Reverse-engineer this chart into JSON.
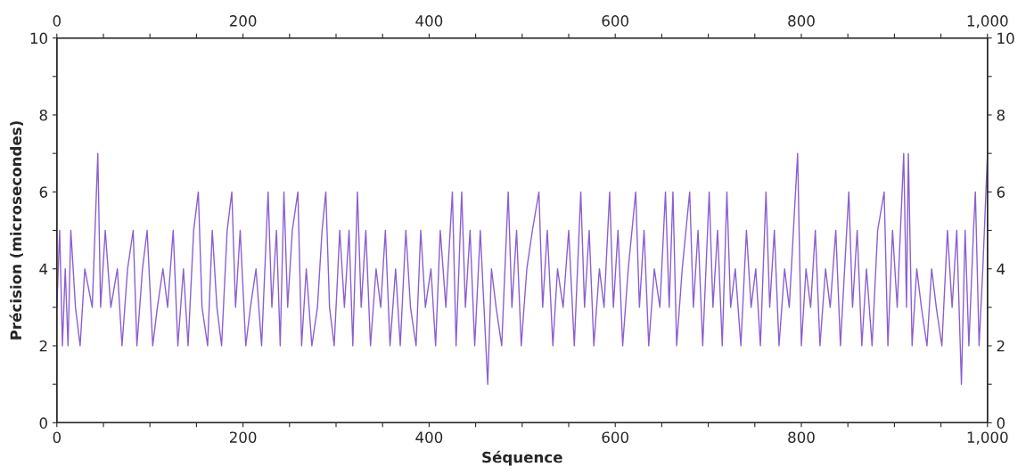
{
  "chart_data": {
    "type": "line",
    "xlabel": "Séquence",
    "ylabel": "Précision (microsecondes)",
    "xlim": [
      0,
      1000
    ],
    "xticks": [
      0,
      {
        "value": 50,
        "label": null
      },
      {
        "value": 100,
        "label": null
      },
      {
        "value": 150,
        "label": null
      },
      200,
      {
        "value": 250,
        "label": null
      },
      {
        "value": 300,
        "label": null
      },
      {
        "value": 350,
        "label": null
      },
      400,
      {
        "value": 450,
        "label": null
      },
      {
        "value": 500,
        "label": null
      },
      {
        "value": 550,
        "label": null
      },
      600,
      {
        "value": 650,
        "label": null
      },
      {
        "value": 700,
        "label": null
      },
      {
        "value": 750,
        "label": null
      },
      800,
      {
        "value": 850,
        "label": null
      },
      {
        "value": 900,
        "label": null
      },
      {
        "value": 950,
        "label": null
      },
      {
        "value": 1000,
        "label": "1,000"
      }
    ],
    "x2lim": [
      0,
      1000
    ],
    "x2ticks": [
      0,
      {
        "value": 50,
        "label": null
      },
      {
        "value": 100,
        "label": null
      },
      {
        "value": 150,
        "label": null
      },
      200,
      {
        "value": 250,
        "label": null
      },
      {
        "value": 300,
        "label": null
      },
      {
        "value": 350,
        "label": null
      },
      400,
      {
        "value": 450,
        "label": null
      },
      {
        "value": 500,
        "label": null
      },
      {
        "value": 550,
        "label": null
      },
      600,
      {
        "value": 650,
        "label": null
      },
      {
        "value": 700,
        "label": null
      },
      {
        "value": 750,
        "label": null
      },
      800,
      {
        "value": 850,
        "label": null
      },
      {
        "value": 900,
        "label": null
      },
      {
        "value": 950,
        "label": null
      },
      {
        "value": 1000,
        "label": "1,000"
      }
    ],
    "ylim": [
      0,
      10
    ],
    "yticks": [
      0,
      {
        "value": 1,
        "label": null
      },
      2,
      {
        "value": 3,
        "label": null
      },
      4,
      {
        "value": 5,
        "label": null
      },
      6,
      {
        "value": 7,
        "label": null
      },
      8,
      {
        "value": 9,
        "label": null
      },
      10
    ],
    "y2lim": [
      0,
      10
    ],
    "y2ticks": [
      0,
      {
        "value": 1,
        "label": null
      },
      2,
      {
        "value": 3,
        "label": null
      },
      4,
      {
        "value": 5,
        "label": null
      },
      6,
      {
        "value": 7,
        "label": null
      },
      8,
      {
        "value": 9,
        "label": null
      },
      10
    ],
    "grid": false,
    "legend": false,
    "series": [
      {
        "color": "#8a5fd0",
        "x": [
          0,
          3,
          6,
          9,
          12,
          15,
          20,
          25,
          30,
          38,
          44,
          47,
          52,
          58,
          65,
          70,
          76,
          82,
          86,
          92,
          97,
          103,
          108,
          114,
          119,
          125,
          130,
          136,
          141,
          147,
          152,
          156,
          162,
          167,
          172,
          177,
          183,
          188,
          192,
          197,
          203,
          208,
          214,
          220,
          227,
          231,
          236,
          240,
          244,
          248,
          253,
          259,
          263,
          268,
          274,
          280,
          285,
          289,
          293,
          298,
          304,
          309,
          314,
          318,
          323,
          327,
          332,
          337,
          343,
          348,
          353,
          358,
          364,
          369,
          375,
          380,
          386,
          391,
          396,
          402,
          407,
          412,
          418,
          425,
          429,
          435,
          439,
          444,
          449,
          455,
          459,
          463,
          467,
          472,
          478,
          485,
          489,
          494,
          499,
          505,
          511,
          518,
          522,
          527,
          533,
          538,
          544,
          550,
          556,
          563,
          567,
          572,
          577,
          583,
          588,
          594,
          598,
          603,
          608,
          614,
          622,
          626,
          631,
          636,
          642,
          648,
          654,
          658,
          662,
          666,
          672,
          680,
          684,
          689,
          694,
          701,
          705,
          710,
          715,
          720,
          724,
          729,
          735,
          741,
          746,
          751,
          756,
          762,
          766,
          771,
          776,
          782,
          787,
          796,
          800,
          805,
          810,
          815,
          820,
          826,
          831,
          837,
          842,
          851,
          855,
          860,
          865,
          870,
          876,
          882,
          889,
          893,
          898,
          903,
          910,
          913,
          915,
          919,
          924,
          929,
          935,
          940,
          945,
          951,
          957,
          962,
          967,
          972,
          976,
          980,
          985,
          987,
          991,
          995,
          1000
        ],
        "values": [
          3,
          5,
          2,
          4,
          2,
          5,
          3,
          2,
          4,
          3,
          7,
          3,
          5,
          3,
          4,
          2,
          4,
          5,
          2,
          4,
          5,
          2,
          3,
          4,
          3,
          5,
          2,
          4,
          2,
          5,
          6,
          3,
          2,
          5,
          3,
          2,
          5,
          6,
          3,
          5,
          2,
          3,
          4,
          2,
          6,
          3,
          5,
          2,
          6,
          3,
          5,
          6,
          2,
          4,
          2,
          3,
          5,
          6,
          3,
          2,
          5,
          3,
          5,
          2,
          6,
          3,
          5,
          2,
          4,
          3,
          5,
          2,
          4,
          2,
          5,
          3,
          2,
          5,
          3,
          4,
          2,
          5,
          3,
          6,
          2,
          6,
          3,
          5,
          2,
          5,
          3,
          1,
          4,
          3,
          2,
          6,
          3,
          5,
          2,
          4,
          5,
          6,
          3,
          5,
          2,
          4,
          3,
          5,
          2,
          6,
          3,
          5,
          2,
          4,
          3,
          6,
          3,
          5,
          2,
          4,
          6,
          3,
          5,
          2,
          4,
          3,
          6,
          3,
          6,
          2,
          4,
          6,
          3,
          5,
          2,
          6,
          3,
          5,
          2,
          6,
          3,
          4,
          2,
          5,
          3,
          4,
          2,
          6,
          3,
          5,
          2,
          4,
          3,
          7,
          2,
          4,
          3,
          5,
          2,
          4,
          3,
          5,
          2,
          6,
          3,
          5,
          2,
          4,
          2,
          5,
          6,
          2,
          5,
          3,
          7,
          3,
          7,
          2,
          4,
          3,
          2,
          4,
          3,
          2,
          5,
          3,
          5,
          1,
          5,
          2,
          5,
          6,
          2,
          4,
          7
        ]
      }
    ]
  }
}
